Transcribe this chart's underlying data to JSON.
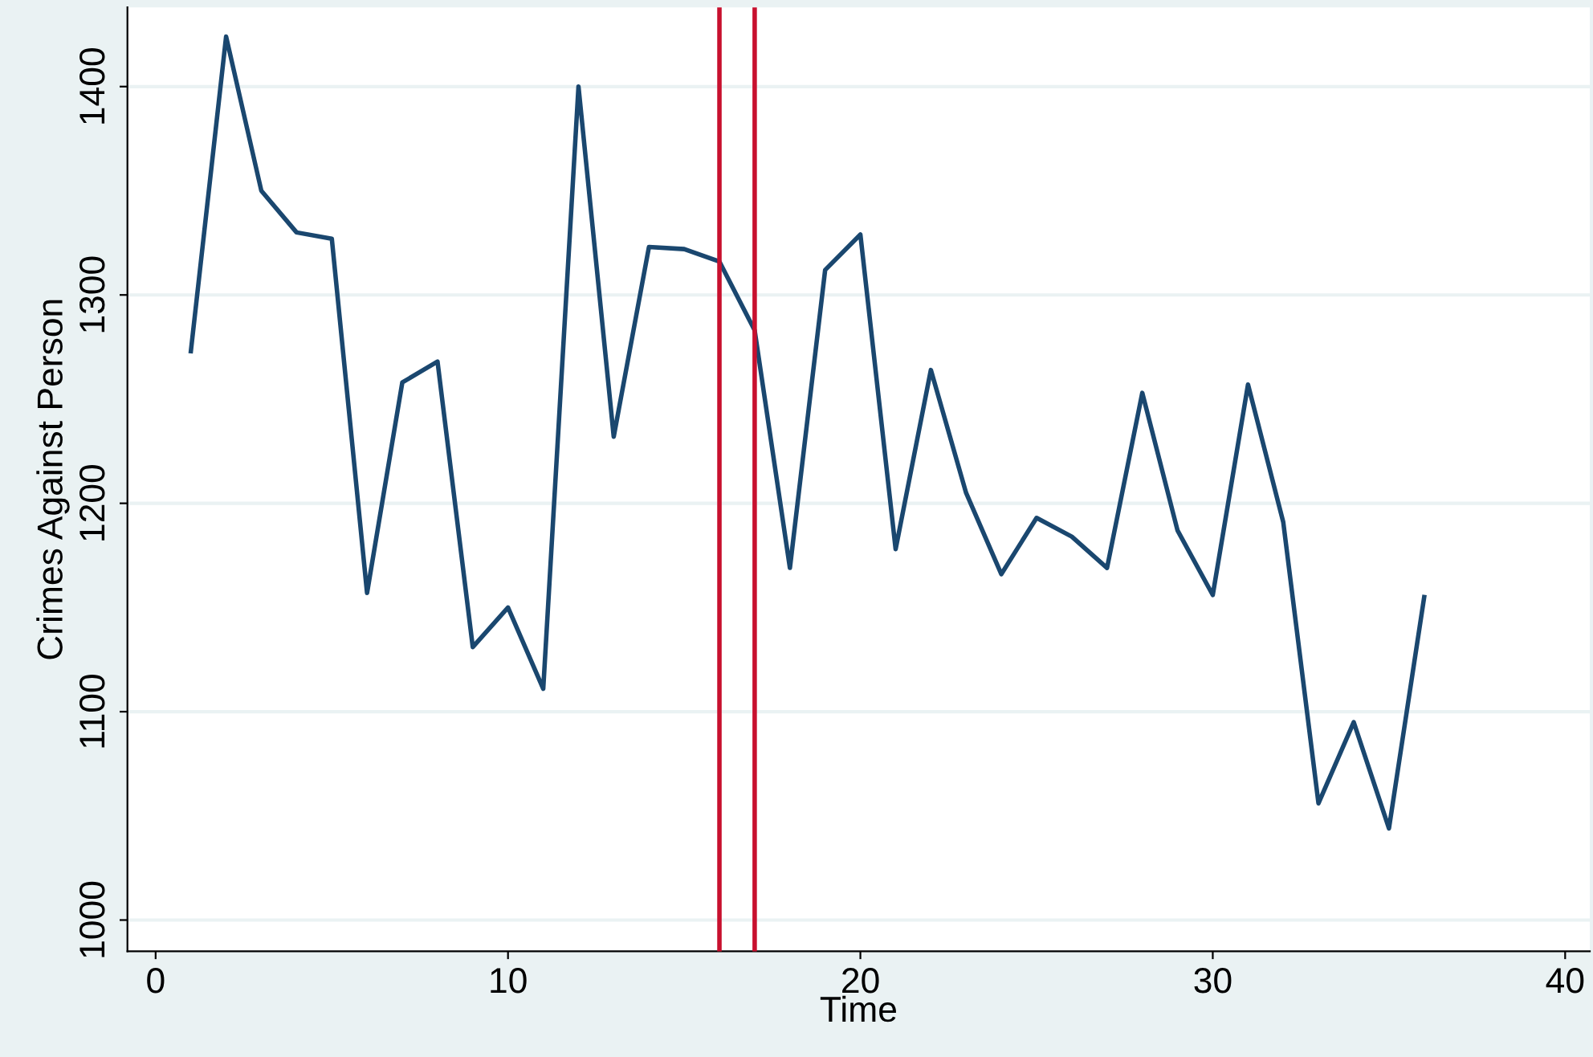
{
  "chart_data": {
    "type": "line",
    "xlabel": "Time",
    "ylabel": "Crimes Against Person",
    "x": [
      1,
      2,
      3,
      4,
      5,
      6,
      7,
      8,
      9,
      10,
      11,
      12,
      13,
      14,
      15,
      16,
      17,
      18,
      19,
      20,
      21,
      22,
      23,
      24,
      25,
      26,
      27,
      28,
      29,
      30,
      31,
      32,
      33,
      34,
      35,
      36
    ],
    "series": [
      {
        "color": "#1a476f",
        "values": [
          1273,
          1424,
          1350,
          1330,
          1327,
          1157,
          1258,
          1268,
          1131,
          1150,
          1111,
          1400,
          1232,
          1323,
          1322,
          1316,
          1283,
          1169,
          1312,
          1329,
          1178,
          1264,
          1205,
          1166,
          1193,
          1184,
          1169,
          1253,
          1187,
          1156,
          1257,
          1191,
          1056,
          1095,
          1044,
          1155
        ]
      }
    ],
    "xlim": [
      -0.8,
      40.7
    ],
    "xticks": [
      0,
      10,
      20,
      30,
      40
    ],
    "ylim": [
      985,
      1438
    ],
    "yticks": [
      1000,
      1100,
      1200,
      1300,
      1400
    ],
    "ref_lines": [
      {
        "axis": "x",
        "value": 16,
        "color": "#c8102e"
      },
      {
        "axis": "x",
        "value": 17,
        "color": "#c8102e"
      }
    ],
    "grid": "y",
    "marker": "none",
    "line_style": "solid"
  }
}
